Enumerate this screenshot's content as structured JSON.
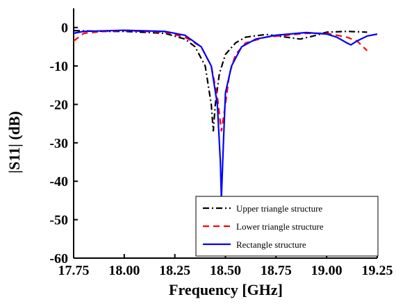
{
  "chart_data": {
    "type": "line",
    "x_label": "Frequency [GHz]",
    "y_label": "|S11| (dB)",
    "xlim": [
      17.75,
      19.25
    ],
    "ylim": [
      -60,
      5
    ],
    "xticks": [
      17.75,
      {
        "value": 18,
        "label": "18.00"
      },
      18.25,
      {
        "value": 18.5,
        "label": "18.50"
      },
      18.75,
      {
        "value": 19,
        "label": "19.00"
      },
      19.25
    ],
    "yticks": [
      0,
      -10,
      -20,
      -30,
      -40,
      -50,
      -60
    ],
    "legend": "lower right",
    "series": [
      {
        "name": "Upper triangle structure",
        "color": "#000000",
        "dash": "dashdot",
        "x": [
          17.75,
          17.9,
          18.0,
          18.2,
          18.3,
          18.35,
          18.4,
          18.43,
          18.44,
          18.45,
          18.47,
          18.5,
          18.55,
          18.6,
          18.7,
          18.8,
          18.87,
          18.95,
          19.0,
          19.1,
          19.2
        ],
        "values": [
          -0.8,
          -1,
          -1,
          -1.5,
          -3,
          -5,
          -10,
          -20,
          -27,
          -20,
          -12,
          -7,
          -4,
          -2.5,
          -1.8,
          -2.5,
          -3,
          -2,
          -1.2,
          -1,
          -1.2
        ]
      },
      {
        "name": "Lower triangle structure",
        "color": "#ff0000",
        "dash": "dash",
        "x": [
          17.75,
          17.8,
          17.9,
          18.0,
          18.2,
          18.3,
          18.38,
          18.43,
          18.46,
          18.48,
          18.5,
          18.52,
          18.55,
          18.6,
          18.7,
          18.8,
          18.9,
          19.0,
          19.1,
          19.15,
          19.2
        ],
        "values": [
          -3.5,
          -1.5,
          -1,
          -0.8,
          -1.2,
          -2.5,
          -5,
          -10,
          -18,
          -27,
          -20,
          -12,
          -7,
          -4,
          -2.5,
          -2,
          -1.5,
          -1.5,
          -2.5,
          -3.5,
          -6
        ]
      },
      {
        "name": "Rectangle structure",
        "color": "#0000ff",
        "dash": "solid",
        "x": [
          17.75,
          17.8,
          18.0,
          18.2,
          18.3,
          18.38,
          18.43,
          18.46,
          18.475,
          18.48,
          18.49,
          18.5,
          18.53,
          18.58,
          18.65,
          18.75,
          18.9,
          19.0,
          19.05,
          19.1,
          19.12,
          19.15,
          19.2,
          19.25
        ],
        "values": [
          -1.5,
          -1,
          -0.7,
          -1,
          -2,
          -5,
          -10,
          -20,
          -35,
          -44.5,
          -30,
          -17,
          -10,
          -5,
          -3,
          -2,
          -1.3,
          -1.7,
          -2.5,
          -4,
          -4.5,
          -3.5,
          -2.2,
          -1.7
        ]
      }
    ]
  }
}
